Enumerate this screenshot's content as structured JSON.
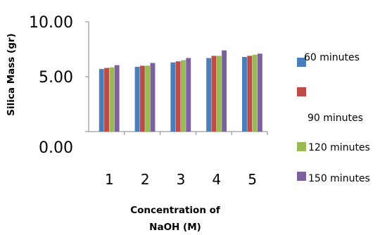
{
  "chart_data": {
    "type": "bar",
    "ylabel": "Silica Mass (gr)",
    "xlabel_lines": [
      "Concentration of",
      "NaOH (M)"
    ],
    "y_ticks": [
      "10.00",
      "5.00",
      "0.00"
    ],
    "ylim": [
      0,
      10
    ],
    "categories": [
      "1",
      "2",
      "3",
      "4",
      "5"
    ],
    "legend_position": "right",
    "grid": false,
    "series": [
      {
        "name": "60 minutes",
        "color": "#4a7ebb",
        "values": [
          5.7,
          5.9,
          6.3,
          6.7,
          6.8
        ]
      },
      {
        "name": "90 minutes",
        "color": "#be4b48",
        "values": [
          5.8,
          6.0,
          6.4,
          6.9,
          6.9
        ]
      },
      {
        "name": "120 minutes",
        "color": "#98b954",
        "values": [
          5.85,
          6.0,
          6.5,
          6.9,
          7.0
        ]
      },
      {
        "name": "150 minutes",
        "color": "#7d60a0",
        "values": [
          6.05,
          6.25,
          6.7,
          7.4,
          7.1
        ]
      }
    ]
  }
}
